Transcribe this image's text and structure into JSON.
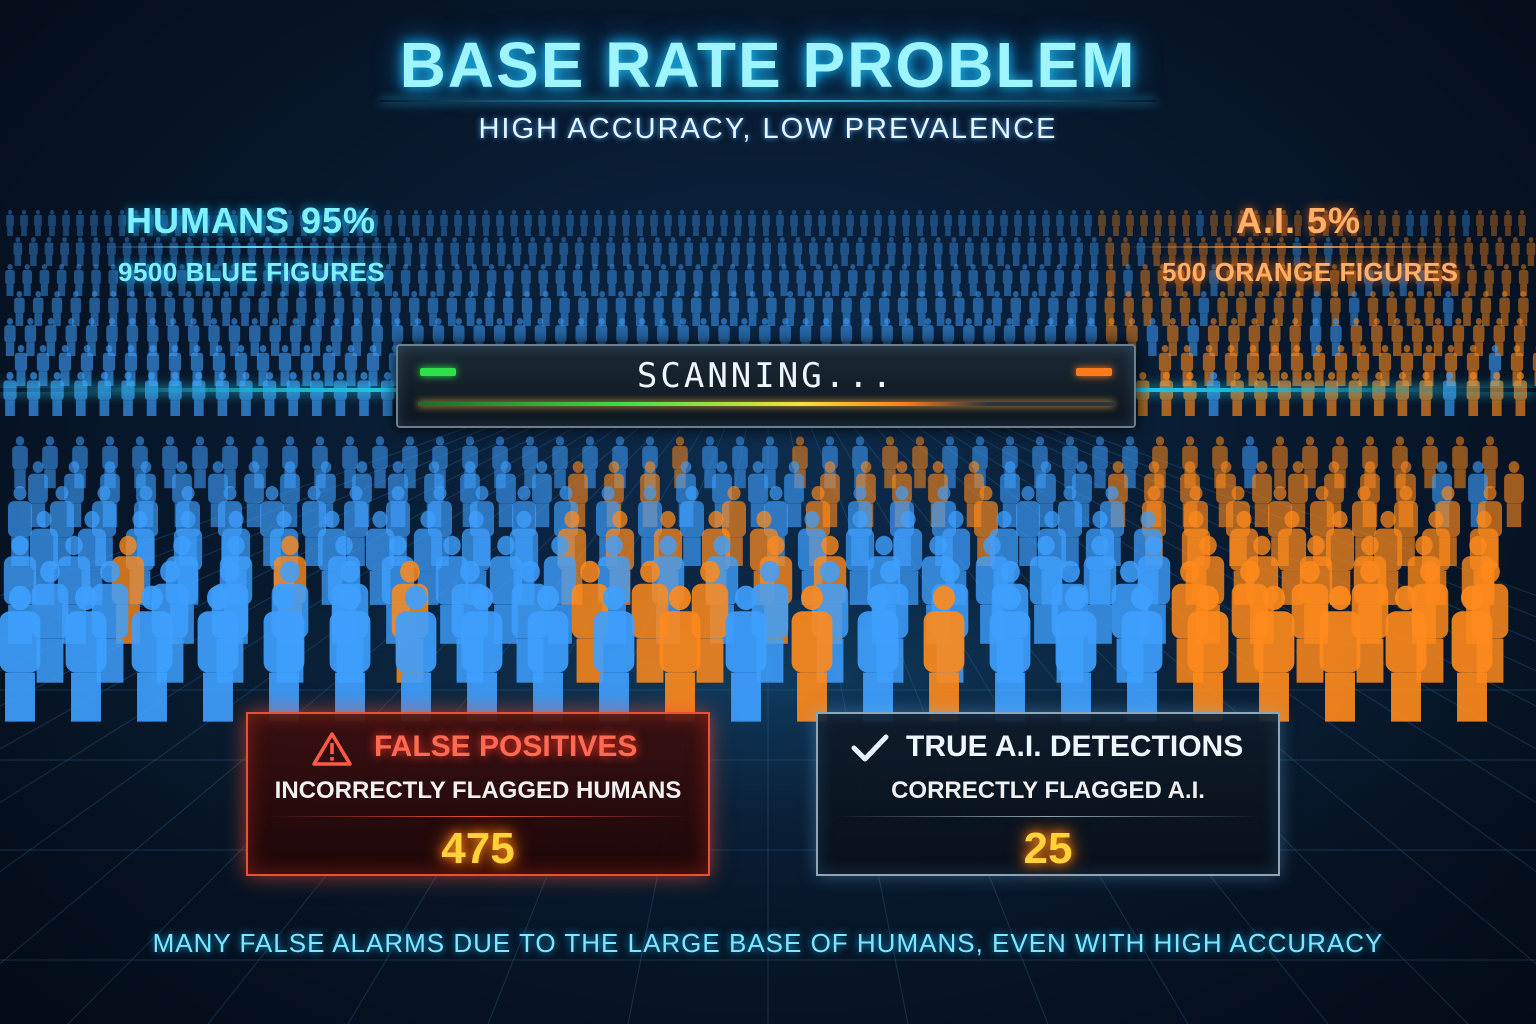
{
  "title": "BASE RATE PROBLEM",
  "subtitle": "HIGH ACCURACY, LOW PREVALENCE",
  "humans": {
    "label": "HUMANS 95%",
    "count_label": "9500 BLUE FIGURES",
    "share": 0.95,
    "color": "#3fa0ff"
  },
  "ai": {
    "label": "A.I. 5%",
    "count_label": "500 ORANGE FIGURES",
    "share": 0.05,
    "color": "#ff8a1c"
  },
  "scanner": {
    "label": "SCANNING..."
  },
  "false_positives": {
    "title": "FALSE POSITIVES",
    "subtitle": "INCORRECTLY FLAGGED HUMANS",
    "value": "475",
    "icon": "warning-icon"
  },
  "true_detections": {
    "title": "TRUE A.I. DETECTIONS",
    "subtitle": "CORRECTLY FLAGGED A.I.",
    "value": "25",
    "icon": "checkmark-icon"
  },
  "footer": "MANY FALSE ALARMS DUE TO THE LARGE BASE OF HUMANS, EVEN WITH HIGH ACCURACY",
  "colors": {
    "accent": "#36d8ff",
    "human": "#3fa0ff",
    "ai": "#ff8a1c",
    "alert": "#e8503a",
    "value": "#ffd23a"
  }
}
